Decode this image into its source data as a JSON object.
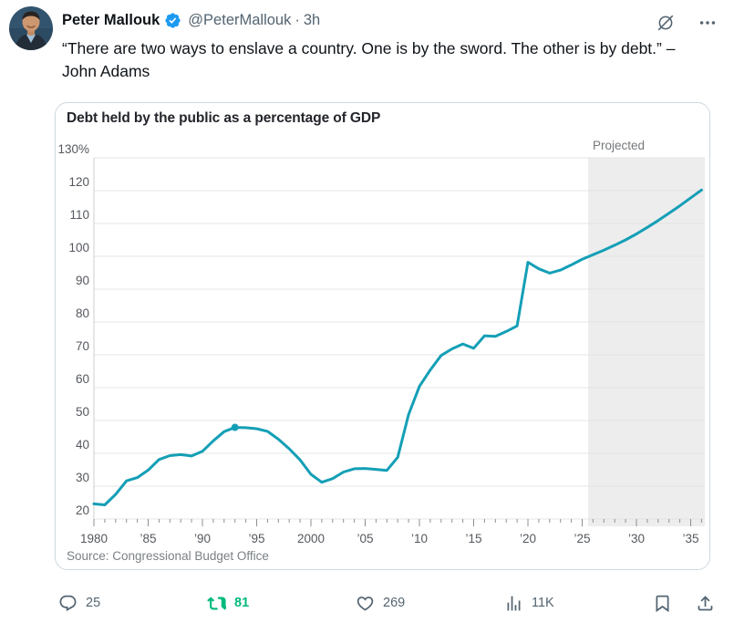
{
  "post": {
    "author": "Peter Mallouk",
    "handle": "@PeterMallouk",
    "separator": "·",
    "timestamp": "3h",
    "text": "“There are two ways to enslave a country. One is by the sword. The other is by debt.” – John Adams"
  },
  "actions": {
    "reply_count": "25",
    "repost_count": "81",
    "like_count": "269",
    "views_count": "11K"
  },
  "icons": {
    "verified": "verified-badge-icon",
    "grok": "grok-icon",
    "more": "more-menu-icon",
    "reply": "reply-icon",
    "repost": "repost-icon",
    "like": "heart-icon",
    "views": "analytics-bars-icon",
    "bookmark": "bookmark-icon",
    "share": "share-icon"
  },
  "colors": {
    "text_primary": "#0f1419",
    "text_secondary": "#536471",
    "verified_blue": "#1d9bf0",
    "repost_green": "#00ba7c",
    "card_border": "#cfd9de"
  },
  "chart_data": {
    "type": "line",
    "title": "Debt held by the public as a percentage of GDP",
    "source": "Source: Congressional Budget Office",
    "projected_label": "Projected",
    "ylim": [
      20,
      130
    ],
    "xlim": [
      1980,
      2036.3
    ],
    "grid": true,
    "y_tick_values": [
      130,
      120,
      110,
      100,
      90,
      80,
      70,
      60,
      50,
      40,
      30,
      20
    ],
    "y_tick_labels": [
      "130%",
      "120",
      "110",
      "100",
      "90",
      "80",
      "70",
      "60",
      "50",
      "40",
      "30",
      "20"
    ],
    "x_tick_years": [
      1980,
      1985,
      1990,
      1995,
      2000,
      2005,
      2010,
      2015,
      2020,
      2025,
      2030,
      2035
    ],
    "x_tick_labels": [
      "1980",
      "’85",
      "’90",
      "’95",
      "2000",
      "’05",
      "’10",
      "’15",
      "’20",
      "’25",
      "’30",
      "’35"
    ],
    "projection": {
      "start_year": 2025.55,
      "label_color": "#75787b",
      "fill": "#ededee"
    },
    "marker": {
      "year": 1993,
      "value": 47.9
    },
    "series": [
      {
        "name": "Debt held by the public (% of GDP)",
        "color": "#149fb6",
        "years": [
          1980,
          1981,
          1982,
          1983,
          1984,
          1985,
          1986,
          1987,
          1988,
          1989,
          1990,
          1991,
          1992,
          1993,
          1994,
          1995,
          1996,
          1997,
          1998,
          1999,
          2000,
          2001,
          2002,
          2003,
          2004,
          2005,
          2006,
          2007,
          2008,
          2009,
          2010,
          2011,
          2012,
          2013,
          2014,
          2015,
          2016,
          2017,
          2018,
          2019,
          2020,
          2021,
          2022,
          2023,
          2024,
          2025,
          2026,
          2027,
          2028,
          2029,
          2030,
          2031,
          2032,
          2033,
          2034,
          2035,
          2036
        ],
        "values": [
          24.6,
          24.3,
          27.5,
          31.6,
          32.6,
          34.9,
          38.1,
          39.3,
          39.6,
          39.2,
          40.6,
          43.8,
          46.6,
          47.9,
          47.8,
          47.5,
          46.7,
          44.3,
          41.4,
          38.0,
          33.6,
          31.2,
          32.3,
          34.3,
          35.3,
          35.4,
          35.1,
          34.8,
          38.8,
          51.8,
          60.4,
          65.4,
          69.8,
          71.8,
          73.3,
          72.0,
          75.8,
          75.6,
          77.1,
          78.8,
          98.2,
          96.2,
          94.9,
          95.8,
          97.4,
          99.1,
          100.5,
          101.9,
          103.4,
          105.0,
          106.8,
          108.8,
          110.9,
          113.1,
          115.4,
          117.8,
          120.2
        ]
      }
    ],
    "style": {
      "grid_color": "#e4e4e4",
      "axis_line_color": "#cfcfcf",
      "tick_color": "#8f8f8f",
      "label_color": "#54585e"
    }
  }
}
